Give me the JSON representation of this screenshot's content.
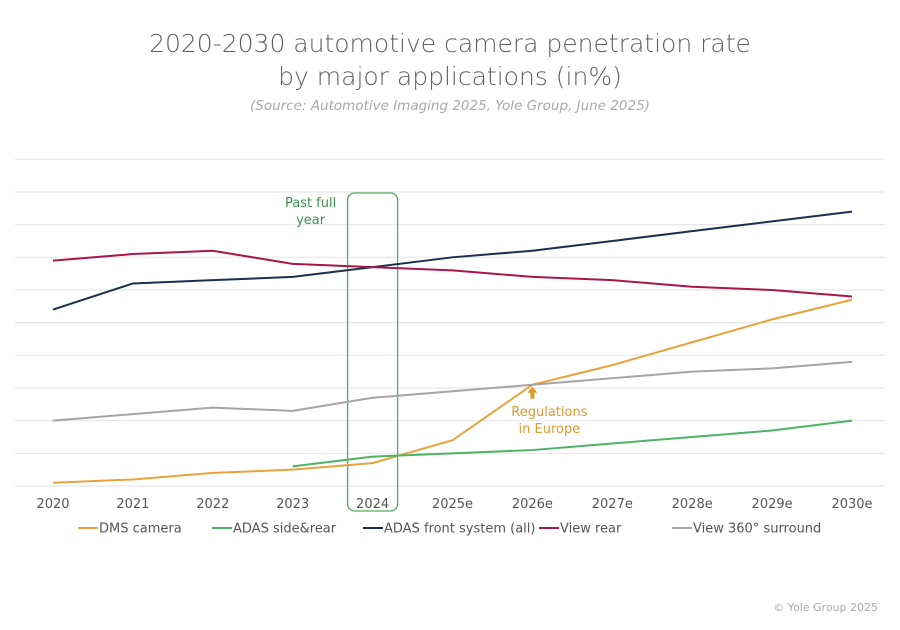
{
  "chart_data": {
    "type": "line",
    "title_line1": "2020-2030 automotive camera penetration rate",
    "title_line2": "by major applications (in%)",
    "subtitle": "(Source: Automotive Imaging 2025, Yole Group, June 2025)",
    "categories": [
      "2020",
      "2021",
      "2022",
      "2023",
      "2024",
      "2025e",
      "2026e",
      "2027e",
      "2028e",
      "2029e",
      "2030e"
    ],
    "ylim": [
      0,
      100
    ],
    "grid": true,
    "y_tick_labels_shown": false,
    "legend_placement": "bottom",
    "series": [
      {
        "name": "DMS camera",
        "color": "#e8a33c",
        "values": [
          1,
          2,
          4,
          5,
          7,
          14,
          31,
          37,
          44,
          51,
          57
        ]
      },
      {
        "name": "ADAS side&rear",
        "color": "#4fb264",
        "values": [
          null,
          null,
          null,
          6,
          9,
          10,
          11,
          13,
          15,
          17,
          20
        ]
      },
      {
        "name": "ADAS front system (all)",
        "color": "#1f2d4f",
        "values": [
          54,
          62,
          63,
          64,
          67,
          70,
          72,
          75,
          78,
          81,
          84
        ]
      },
      {
        "name": "View rear",
        "color": "#a8174a",
        "values": [
          69,
          71,
          72,
          68,
          67,
          66,
          64,
          63,
          61,
          60,
          58
        ]
      },
      {
        "name": "View 360° surround",
        "color": "#a6a4a4",
        "values": [
          20,
          22,
          24,
          23,
          27,
          29,
          31,
          33,
          35,
          36,
          38
        ]
      }
    ],
    "annotations": [
      {
        "text_line1": "Past full",
        "text_line2": "year",
        "highlight_category": "2024",
        "color": "#4fae5f"
      },
      {
        "text_line1": "Regulations",
        "text_line2": "in Europe",
        "target_category": "2026e",
        "target_series": "DMS camera",
        "color": "#e09a2c"
      }
    ]
  },
  "footer": {
    "copyright": "© Yole Group 2025"
  }
}
